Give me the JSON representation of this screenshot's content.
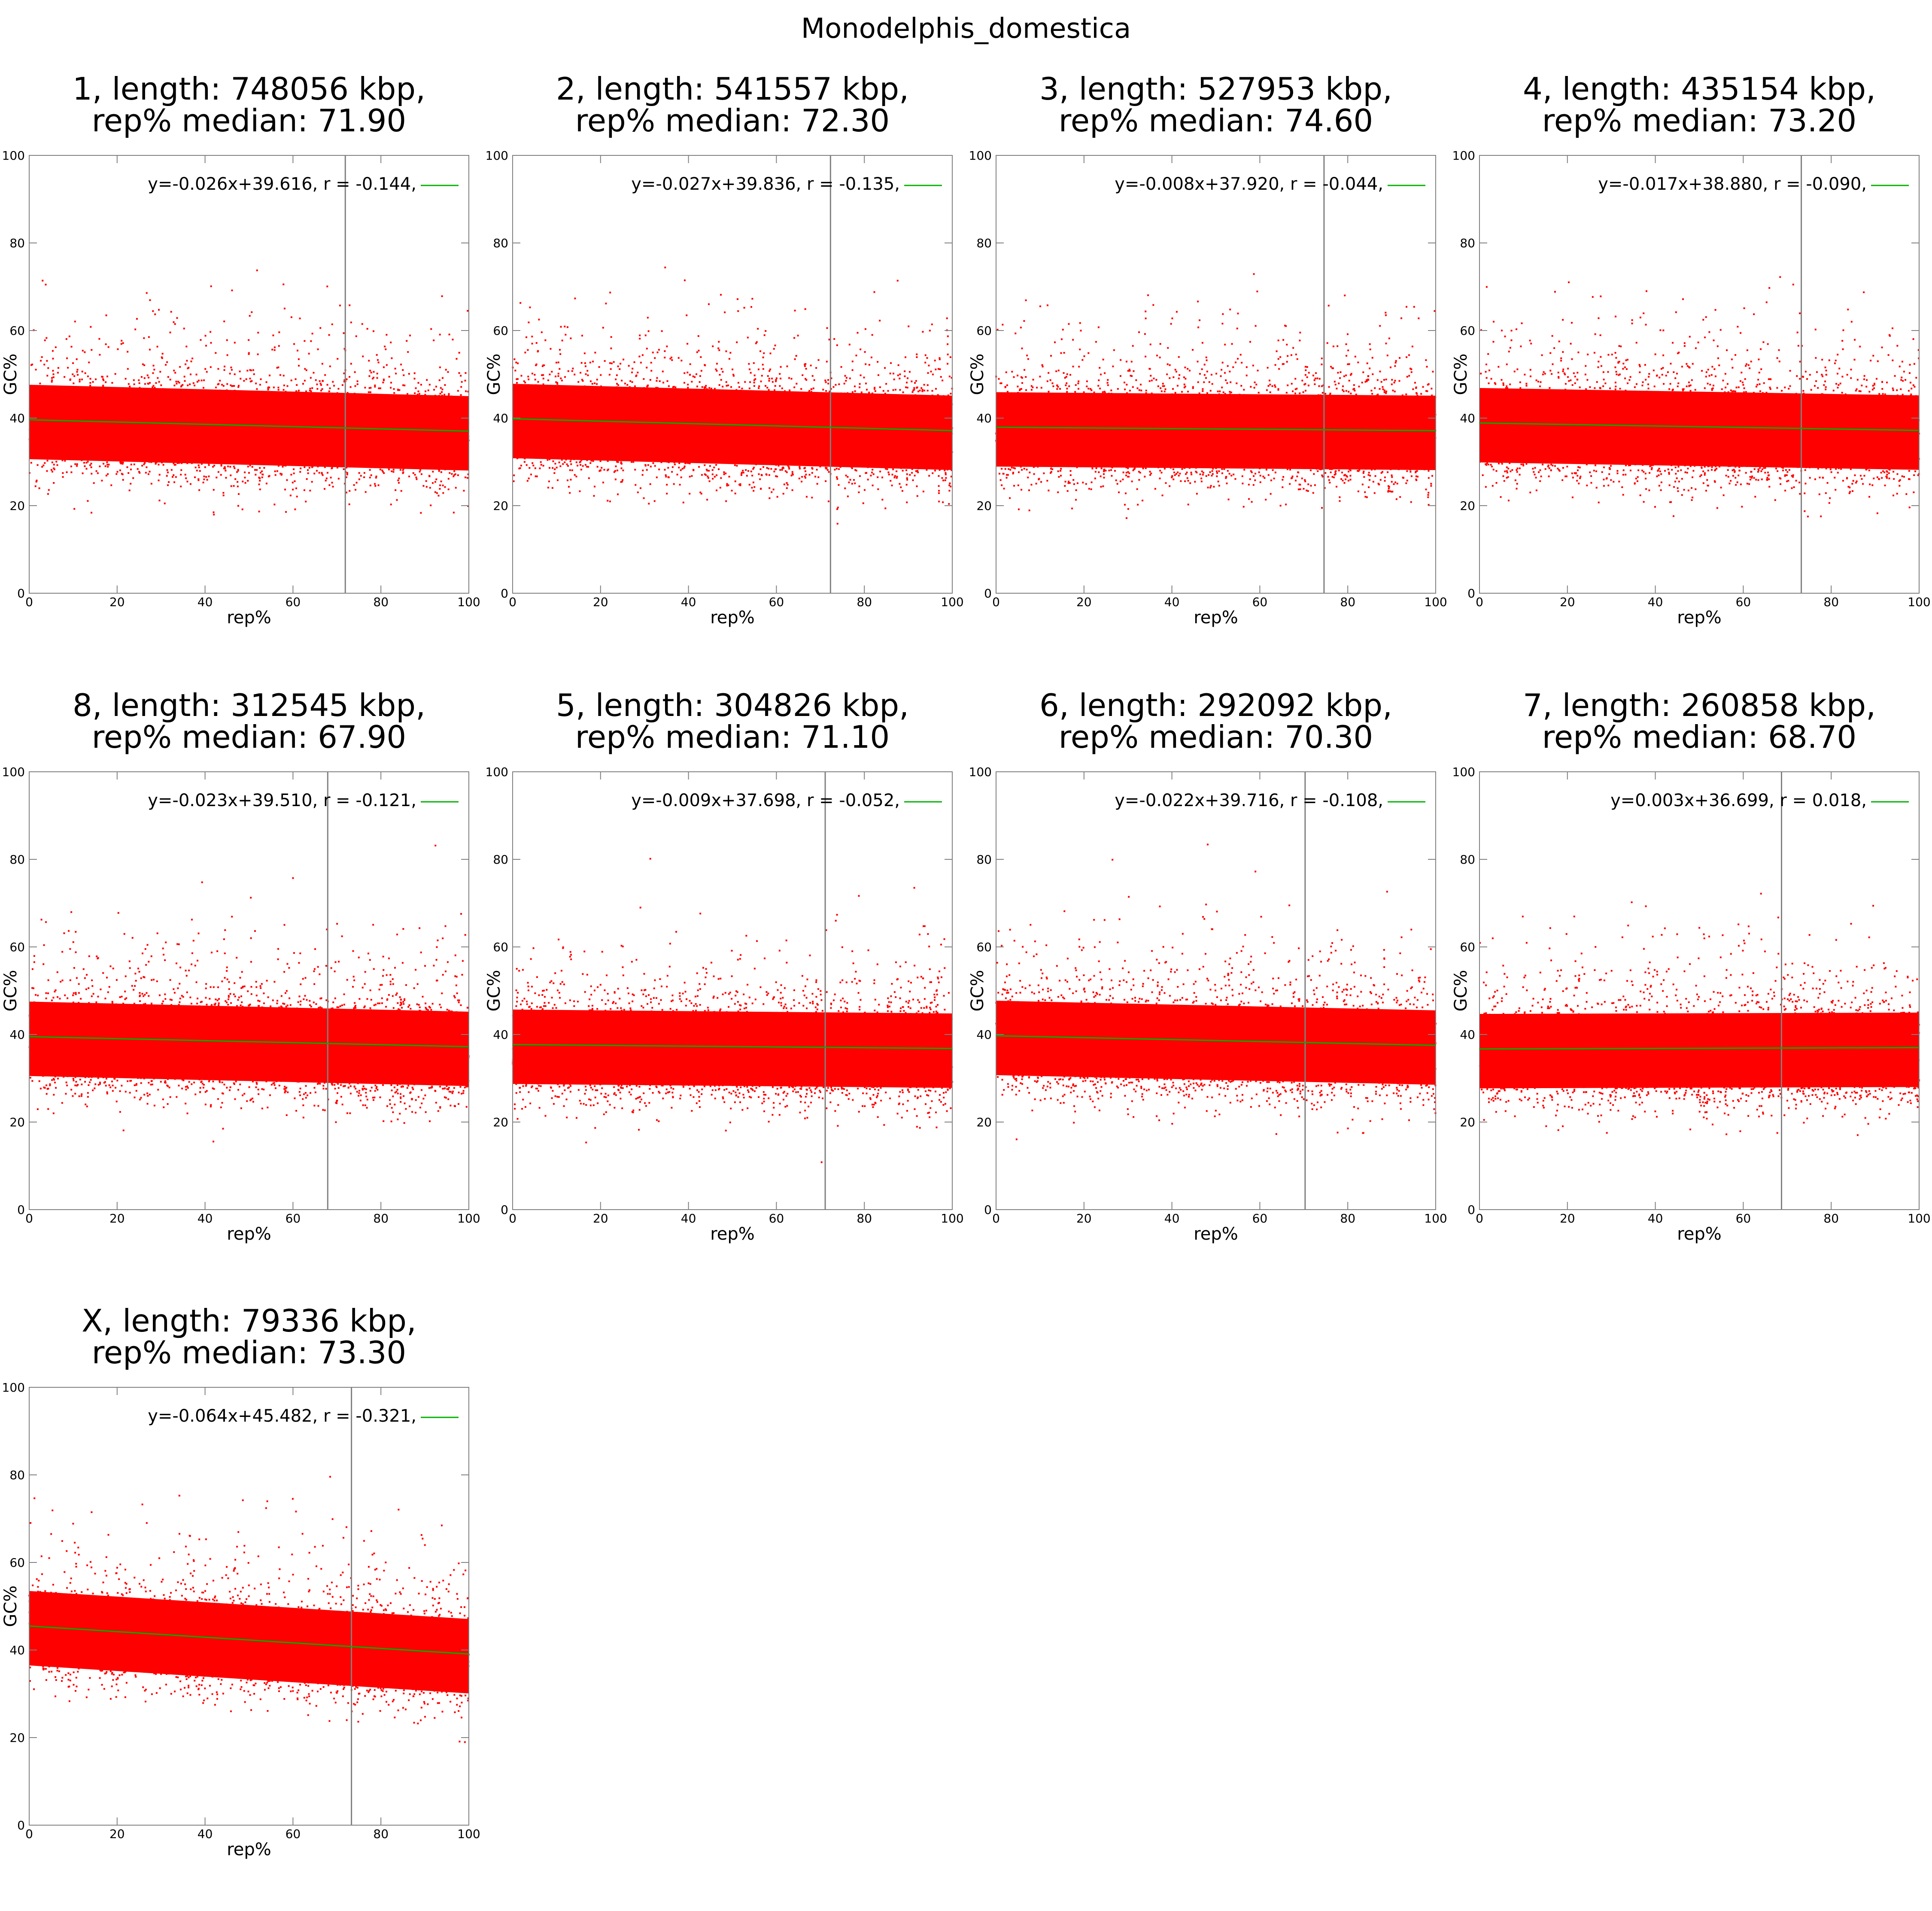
{
  "figure_title": "Monodelphis_domestica",
  "colors": {
    "points": "#ff0000",
    "fit": "#00b000",
    "median": "#808080",
    "frame": "#808080"
  },
  "chart_data": [
    {
      "type": "scatter",
      "title": "1, length: 748056 kbp,",
      "subtitle": "rep% median: 71.90",
      "xlabel": "rep%",
      "ylabel": "GC%",
      "xlim": [
        0,
        100
      ],
      "ylim": [
        0,
        100
      ],
      "xticks": [
        0,
        20,
        40,
        60,
        80,
        100
      ],
      "yticks": [
        0,
        20,
        40,
        60,
        80,
        100
      ],
      "median": 71.9,
      "fit": {
        "slope": -0.026,
        "intercept": 39.616,
        "r": -0.144
      },
      "fit_label": "y=-0.026x+39.616, r = -0.144,"
    },
    {
      "type": "scatter",
      "title": "2, length: 541557 kbp,",
      "subtitle": "rep% median: 72.30",
      "xlabel": "rep%",
      "ylabel": "GC%",
      "xlim": [
        0,
        100
      ],
      "ylim": [
        0,
        100
      ],
      "xticks": [
        0,
        20,
        40,
        60,
        80,
        100
      ],
      "yticks": [
        0,
        20,
        40,
        60,
        80,
        100
      ],
      "median": 72.3,
      "fit": {
        "slope": -0.027,
        "intercept": 39.836,
        "r": -0.135
      },
      "fit_label": "y=-0.027x+39.836, r = -0.135,"
    },
    {
      "type": "scatter",
      "title": "3, length: 527953 kbp,",
      "subtitle": "rep% median: 74.60",
      "xlabel": "rep%",
      "ylabel": "GC%",
      "xlim": [
        0,
        100
      ],
      "ylim": [
        0,
        100
      ],
      "xticks": [
        0,
        20,
        40,
        60,
        80,
        100
      ],
      "yticks": [
        0,
        20,
        40,
        60,
        80,
        100
      ],
      "median": 74.6,
      "fit": {
        "slope": -0.008,
        "intercept": 37.92,
        "r": -0.044
      },
      "fit_label": "y=-0.008x+37.920, r = -0.044,"
    },
    {
      "type": "scatter",
      "title": "4, length: 435154 kbp,",
      "subtitle": "rep% median: 73.20",
      "xlabel": "rep%",
      "ylabel": "GC%",
      "xlim": [
        0,
        100
      ],
      "ylim": [
        0,
        100
      ],
      "xticks": [
        0,
        20,
        40,
        60,
        80,
        100
      ],
      "yticks": [
        0,
        20,
        40,
        60,
        80,
        100
      ],
      "median": 73.2,
      "fit": {
        "slope": -0.017,
        "intercept": 38.88,
        "r": -0.09
      },
      "fit_label": "y=-0.017x+38.880, r = -0.090,"
    },
    {
      "type": "scatter",
      "title": "8, length: 312545 kbp,",
      "subtitle": "rep% median: 67.90",
      "xlabel": "rep%",
      "ylabel": "GC%",
      "xlim": [
        0,
        100
      ],
      "ylim": [
        0,
        100
      ],
      "xticks": [
        0,
        20,
        40,
        60,
        80,
        100
      ],
      "yticks": [
        0,
        20,
        40,
        60,
        80,
        100
      ],
      "median": 67.9,
      "fit": {
        "slope": -0.023,
        "intercept": 39.51,
        "r": -0.121
      },
      "fit_label": "y=-0.023x+39.510, r = -0.121,"
    },
    {
      "type": "scatter",
      "title": "5, length: 304826 kbp,",
      "subtitle": "rep% median: 71.10",
      "xlabel": "rep%",
      "ylabel": "GC%",
      "xlim": [
        0,
        100
      ],
      "ylim": [
        0,
        100
      ],
      "xticks": [
        0,
        20,
        40,
        60,
        80,
        100
      ],
      "yticks": [
        0,
        20,
        40,
        60,
        80,
        100
      ],
      "median": 71.1,
      "fit": {
        "slope": -0.009,
        "intercept": 37.698,
        "r": -0.052
      },
      "fit_label": "y=-0.009x+37.698, r = -0.052,"
    },
    {
      "type": "scatter",
      "title": "6, length: 292092 kbp,",
      "subtitle": "rep% median: 70.30",
      "xlabel": "rep%",
      "ylabel": "GC%",
      "xlim": [
        0,
        100
      ],
      "ylim": [
        0,
        100
      ],
      "xticks": [
        0,
        20,
        40,
        60,
        80,
        100
      ],
      "yticks": [
        0,
        20,
        40,
        60,
        80,
        100
      ],
      "median": 70.3,
      "fit": {
        "slope": -0.022,
        "intercept": 39.716,
        "r": -0.108
      },
      "fit_label": "y=-0.022x+39.716, r = -0.108,"
    },
    {
      "type": "scatter",
      "title": "7, length: 260858 kbp,",
      "subtitle": "rep% median: 68.70",
      "xlabel": "rep%",
      "ylabel": "GC%",
      "xlim": [
        0,
        100
      ],
      "ylim": [
        0,
        100
      ],
      "xticks": [
        0,
        20,
        40,
        60,
        80,
        100
      ],
      "yticks": [
        0,
        20,
        40,
        60,
        80,
        100
      ],
      "median": 68.7,
      "fit": {
        "slope": 0.003,
        "intercept": 36.699,
        "r": 0.018
      },
      "fit_label": "y=0.003x+36.699, r = 0.018,"
    },
    {
      "type": "scatter",
      "title": "X, length: 79336 kbp,",
      "subtitle": "rep% median: 73.30",
      "xlabel": "rep%",
      "ylabel": "GC%",
      "xlim": [
        0,
        100
      ],
      "ylim": [
        0,
        100
      ],
      "xticks": [
        0,
        20,
        40,
        60,
        80,
        100
      ],
      "yticks": [
        0,
        20,
        40,
        60,
        80,
        100
      ],
      "median": 73.3,
      "fit": {
        "slope": -0.064,
        "intercept": 45.482,
        "r": -0.321
      },
      "fit_label": "y=-0.064x+45.482, r = -0.321,"
    }
  ]
}
